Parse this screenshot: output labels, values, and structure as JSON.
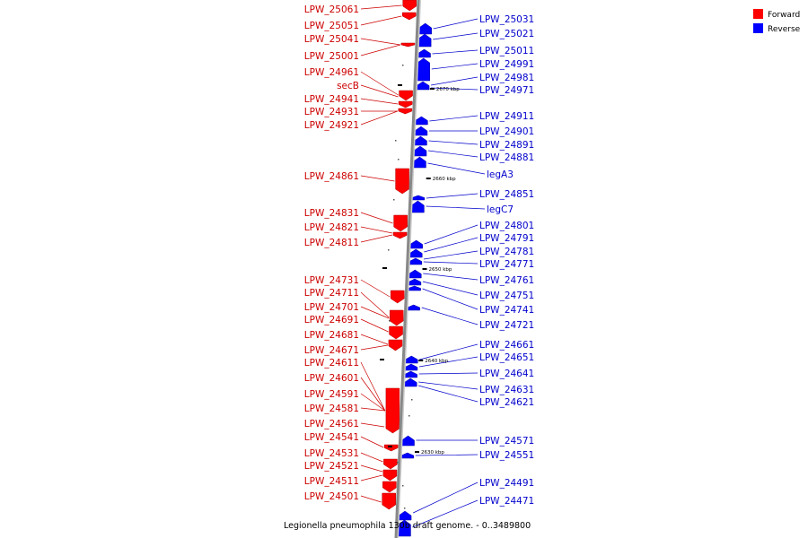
{
  "legend": [
    {
      "label": "Forward",
      "color": "#ff0000"
    },
    {
      "label": "Reverse",
      "color": "#0000ff"
    }
  ],
  "caption": "Legionella pneumophila 130b draft genome. - 0..3489800",
  "colors": {
    "forward": "#ff0000",
    "reverse": "#0000ff",
    "forward_text": "#cc0000",
    "reverse_text": "#0000cc",
    "axis": "#888888"
  },
  "ticks": [
    "2670 kbp",
    "2660 kbp",
    "2650 kbp",
    "2640 kbp",
    "2630 kbp"
  ],
  "forward_labels": [
    "LPW_25061",
    "LPW_25051",
    "LPW_25041",
    "LPW_25001",
    "LPW_24961",
    "secB",
    "LPW_24941",
    "LPW_24931",
    "LPW_24921",
    "LPW_24861",
    "LPW_24831",
    "LPW_24821",
    "LPW_24811",
    "LPW_24731",
    "LPW_24711",
    "LPW_24701",
    "LPW_24691",
    "LPW_24681",
    "LPW_24671",
    "LPW_24611",
    "LPW_24601",
    "LPW_24591",
    "LPW_24581",
    "LPW_24561",
    "LPW_24541",
    "LPW_24531",
    "LPW_24521",
    "LPW_24511",
    "LPW_24501"
  ],
  "reverse_labels": [
    "LPW_25031",
    "LPW_25021",
    "LPW_25011",
    "LPW_24991",
    "LPW_24981",
    "LPW_24971",
    "LPW_24911",
    "LPW_24901",
    "LPW_24891",
    "LPW_24881",
    "legA3",
    "LPW_24851",
    "legC7",
    "LPW_24801",
    "LPW_24791",
    "LPW_24781",
    "LPW_24771",
    "LPW_24761",
    "LPW_24751",
    "LPW_24741",
    "LPW_24721",
    "LPW_24661",
    "LPW_24651",
    "LPW_24641",
    "LPW_24631",
    "LPW_24621",
    "LPW_24571",
    "LPW_24551",
    "LPW_24491",
    "LPW_24471"
  ]
}
